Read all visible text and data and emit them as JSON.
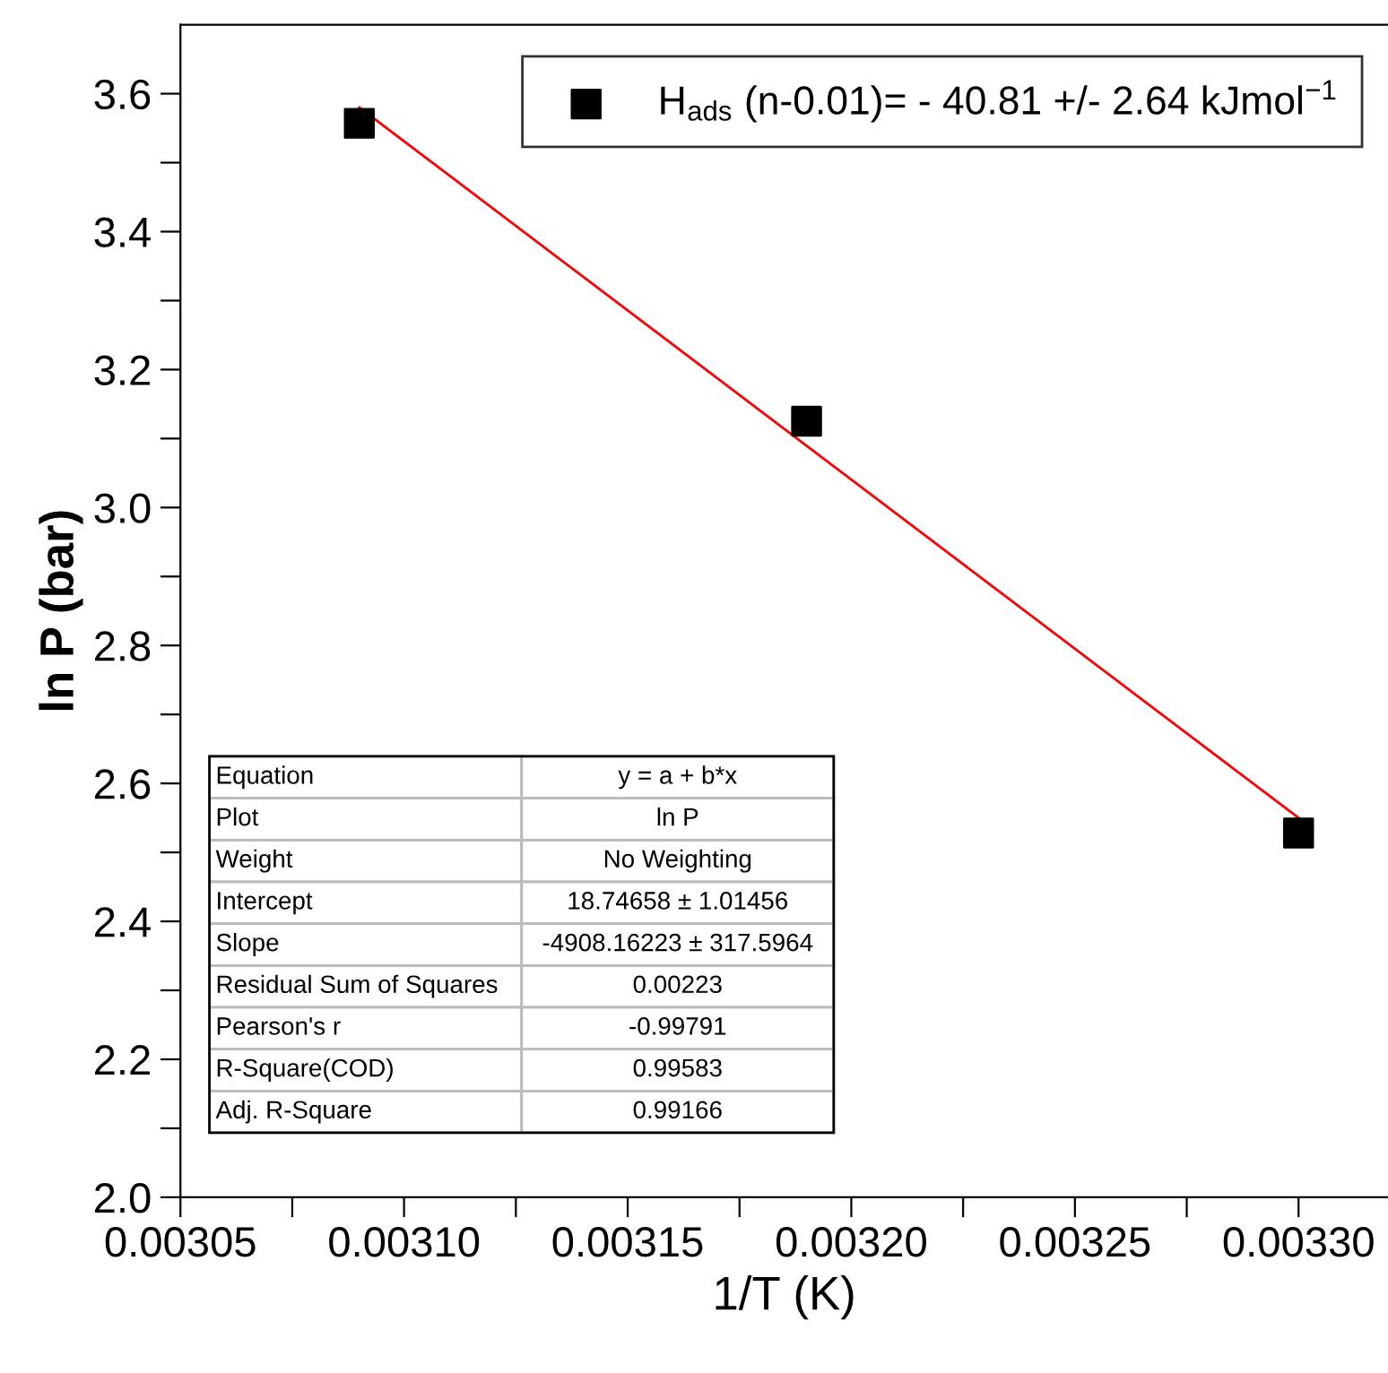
{
  "chart_data": {
    "type": "scatter",
    "xlabel": "1/T (K)",
    "ylabel": "ln P (bar)",
    "series": [
      {
        "name": "H$_{ads}$ (n-0.01)= - 40.81 +/- 2.64 kJmol$^{−1}$",
        "color": "#000000",
        "x": [
          0.00309,
          0.00319,
          0.0033
        ],
        "values": [
          3.557,
          3.125,
          2.528
        ],
        "marker": "square"
      },
      {
        "type": "line",
        "color": "#ff0000",
        "x": [
          0.00309,
          0.0033
        ],
        "values": [
          3.58,
          2.55
        ],
        "marker": "none",
        "line_style": "solid"
      }
    ],
    "xlim": [
      0.00305,
      0.00332
    ],
    "xticks": [
      {
        "value": 0.00305,
        "label": "0.00305"
      },
      {
        "value": 0.003075,
        "label": null
      },
      {
        "value": 0.0031,
        "label": "0.00310"
      },
      {
        "value": 0.003125,
        "label": null
      },
      {
        "value": 0.00315,
        "label": "0.00315"
      },
      {
        "value": 0.003175,
        "label": null
      },
      {
        "value": 0.0032,
        "label": "0.00320"
      },
      {
        "value": 0.003225,
        "label": null
      },
      {
        "value": 0.00325,
        "label": "0.00325"
      },
      {
        "value": 0.003275,
        "label": null
      },
      {
        "value": 0.0033,
        "label": "0.00330"
      }
    ],
    "ylim": [
      2.0,
      3.7
    ],
    "yticks": [
      {
        "value": 2.0,
        "label": "2.0"
      },
      {
        "value": 2.1,
        "label": null
      },
      {
        "value": 2.2,
        "label": "2.2"
      },
      {
        "value": 2.3,
        "label": null
      },
      {
        "value": 2.4,
        "label": "2.4"
      },
      {
        "value": 2.5,
        "label": null
      },
      {
        "value": 2.6,
        "label": "2.6"
      },
      {
        "value": 2.7,
        "label": null
      },
      {
        "value": 2.8,
        "label": "2.8"
      },
      {
        "value": 2.9,
        "label": null
      },
      {
        "value": 3.0,
        "label": "3.0"
      },
      {
        "value": 3.1,
        "label": null
      },
      {
        "value": 3.2,
        "label": "3.2"
      },
      {
        "value": 3.3,
        "label": null
      },
      {
        "value": 3.4,
        "label": "3.4"
      },
      {
        "value": 3.5,
        "label": null
      },
      {
        "value": 3.6,
        "label": "3.6"
      }
    ],
    "grid": false,
    "legend": "top right",
    "annotations": [
      "Equation",
      "y = a + b*x",
      "Plot",
      "ln P",
      "Weight",
      "No Weighting",
      "Intercept",
      "18.74658 ± 1.01456",
      "Slope",
      "-4908.16223 ± 317.5964",
      "Residual Sum of Squares",
      "0.00223",
      "Pearson's r",
      "-0.99791",
      "R-Square(COD)",
      "0.99583",
      "Adj. R-Square",
      "0.99166"
    ]
  }
}
